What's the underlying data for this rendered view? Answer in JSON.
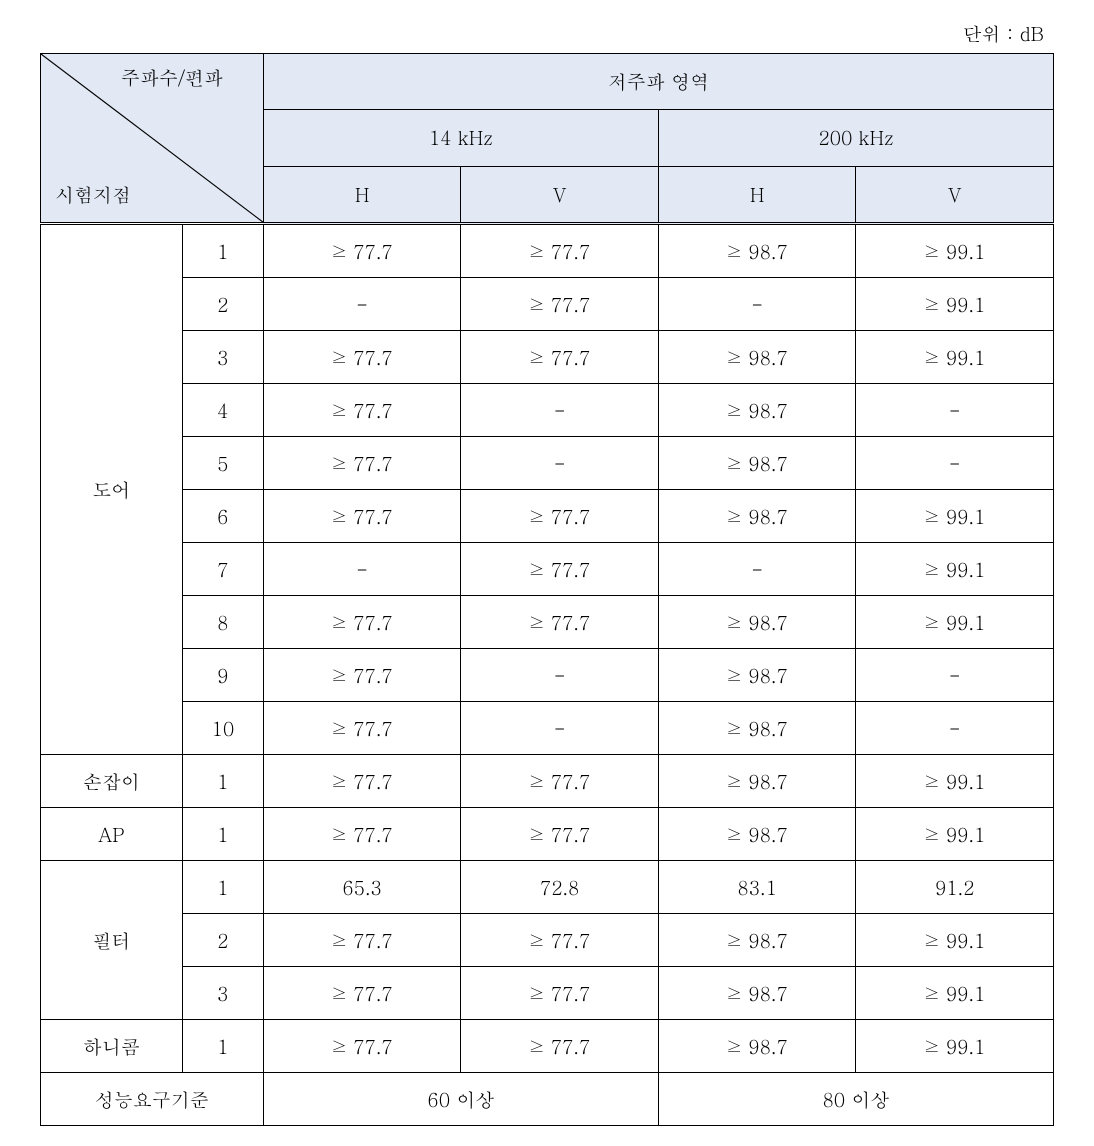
{
  "unit_label": "단위 : dB",
  "header": {
    "diag_top": "주파수/편파",
    "diag_bottom": "시험지점",
    "region": "저주파 영역",
    "freq1": "14 kHz",
    "freq2": "200 kHz",
    "h": "H",
    "v": "V"
  },
  "groups": [
    {
      "label": "도어",
      "rows": [
        {
          "n": "1",
          "v": [
            "≥ 77.7",
            "≥ 77.7",
            "≥ 98.7",
            "≥ 99.1"
          ]
        },
        {
          "n": "2",
          "v": [
            "-",
            "≥ 77.7",
            "-",
            "≥ 99.1"
          ]
        },
        {
          "n": "3",
          "v": [
            "≥ 77.7",
            "≥ 77.7",
            "≥ 98.7",
            "≥ 99.1"
          ]
        },
        {
          "n": "4",
          "v": [
            "≥ 77.7",
            "-",
            "≥ 98.7",
            "-"
          ]
        },
        {
          "n": "5",
          "v": [
            "≥ 77.7",
            "-",
            "≥ 98.7",
            "-"
          ]
        },
        {
          "n": "6",
          "v": [
            "≥ 77.7",
            "≥ 77.7",
            "≥ 98.7",
            "≥ 99.1"
          ]
        },
        {
          "n": "7",
          "v": [
            "-",
            "≥ 77.7",
            "-",
            "≥ 99.1"
          ]
        },
        {
          "n": "8",
          "v": [
            "≥ 77.7",
            "≥ 77.7",
            "≥ 98.7",
            "≥ 99.1"
          ]
        },
        {
          "n": "9",
          "v": [
            "≥ 77.7",
            "-",
            "≥ 98.7",
            "-"
          ]
        },
        {
          "n": "10",
          "v": [
            "≥ 77.7",
            "-",
            "≥ 98.7",
            "-"
          ]
        }
      ]
    },
    {
      "label": "손잡이",
      "rows": [
        {
          "n": "1",
          "v": [
            "≥ 77.7",
            "≥ 77.7",
            "≥ 98.7",
            "≥ 99.1"
          ]
        }
      ]
    },
    {
      "label": "AP",
      "rows": [
        {
          "n": "1",
          "v": [
            "≥ 77.7",
            "≥ 77.7",
            "≥ 98.7",
            "≥ 99.1"
          ]
        }
      ]
    },
    {
      "label": "필터",
      "rows": [
        {
          "n": "1",
          "v": [
            "65.3",
            "72.8",
            "83.1",
            "91.2"
          ]
        },
        {
          "n": "2",
          "v": [
            "≥ 77.7",
            "≥ 77.7",
            "≥ 98.7",
            "≥ 99.1"
          ]
        },
        {
          "n": "3",
          "v": [
            "≥ 77.7",
            "≥ 77.7",
            "≥ 98.7",
            "≥ 99.1"
          ]
        }
      ]
    },
    {
      "label": "하니콤",
      "rows": [
        {
          "n": "1",
          "v": [
            "≥ 77.7",
            "≥ 77.7",
            "≥ 98.7",
            "≥ 99.1"
          ]
        }
      ]
    }
  ],
  "footer": {
    "label": "성능요구기준",
    "v1": "60 이상",
    "v2": "80 이상"
  },
  "style": {
    "header_bg": "#e2e8f4",
    "border_color": "#000000",
    "text_color": "#000000",
    "font_size_pt": 19
  }
}
